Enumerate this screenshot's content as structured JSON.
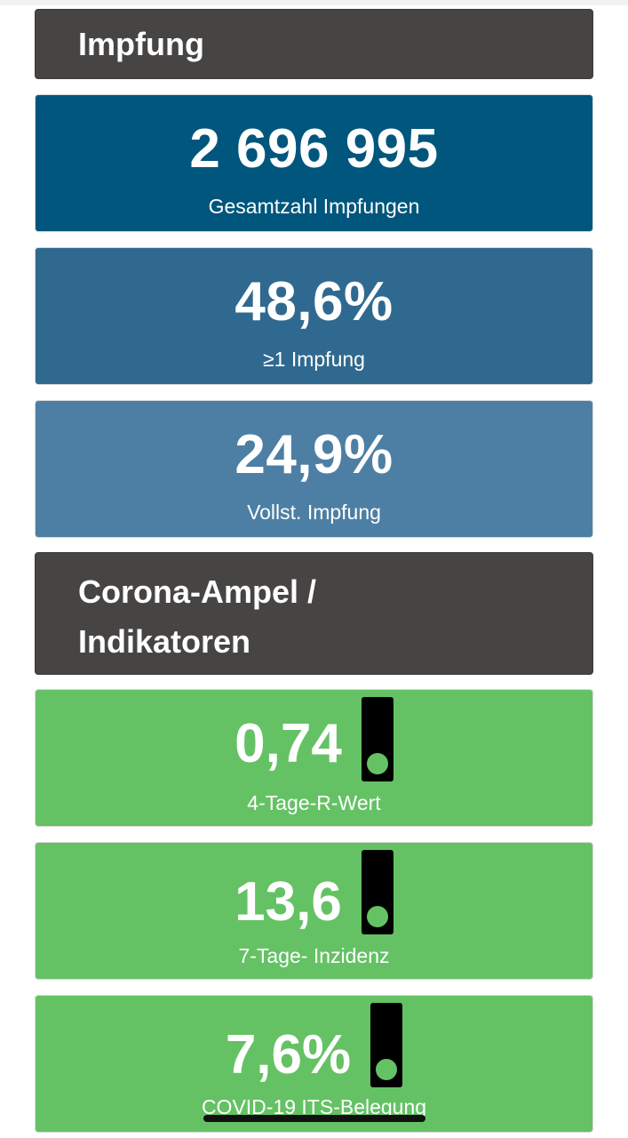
{
  "sections": {
    "impfung": {
      "title": "Impfung"
    },
    "ampel": {
      "title_line1": "Corona-Ampel /",
      "title_line2": "Indikatoren"
    }
  },
  "vaccination": [
    {
      "value": "2 696 995",
      "label": "Gesamtzahl Impfungen",
      "color": "#00567c"
    },
    {
      "value": "48,6%",
      "label": "≥1 Impfung",
      "color": "#30698f"
    },
    {
      "value": "24,9%",
      "label": "Vollst. Impfung",
      "color": "#4d7fa4"
    }
  ],
  "indicators": [
    {
      "value": "0,74",
      "label": "4-Tage-R-Wert",
      "color": "#64c264",
      "light": "green"
    },
    {
      "value": "13,6",
      "label": "7-Tage- Inzidenz",
      "color": "#64c264",
      "light": "green"
    },
    {
      "value": "7,6%",
      "label": "COVID-19 ITS-Belegung",
      "color": "#64c264",
      "light": "green"
    }
  ],
  "colors": {
    "header_bg": "#474544",
    "lamp_green": "#64c264"
  },
  "icons": {
    "traffic_light": "traffic-light-icon"
  }
}
